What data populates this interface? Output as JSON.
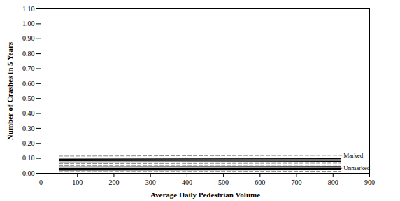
{
  "chart_data": {
    "type": "line",
    "xlabel": "Average Daily Pedestrian Volume",
    "ylabel": "Number of Crashes in 5 Years",
    "xlim": [
      0,
      900
    ],
    "ylim": [
      0.0,
      1.1
    ],
    "xticks": [
      0,
      100,
      200,
      300,
      400,
      500,
      600,
      700,
      800,
      900
    ],
    "yticks": [
      {
        "value": 0.0,
        "label": "0.00"
      },
      {
        "value": 0.1,
        "label": "0.10"
      },
      {
        "value": 0.2,
        "label": "0.20"
      },
      {
        "value": 0.3,
        "label": "0.30"
      },
      {
        "value": 0.4,
        "label": "0.40"
      },
      {
        "value": 0.5,
        "label": "0.50"
      },
      {
        "value": 0.6,
        "label": "0.60"
      },
      {
        "value": 0.7,
        "label": "0.70"
      },
      {
        "value": 0.8,
        "label": "0.80"
      },
      {
        "value": 0.9,
        "label": "0.90"
      },
      {
        "value": 1.0,
        "label": "1.00"
      },
      {
        "value": 1.1,
        "label": "1.10"
      }
    ],
    "grid": false,
    "x": [
      50,
      820
    ],
    "series": [
      {
        "values": [
          0.115,
          0.12
        ],
        "line_style": "dashed",
        "color": "#888888"
      },
      {
        "values": [
          0.095,
          0.097
        ],
        "line_style": "solid",
        "color": "black"
      },
      {
        "values": [
          0.085,
          0.088
        ],
        "line_style": "solid",
        "color": "black"
      },
      {
        "values": [
          0.075,
          0.078
        ],
        "line_style": "solid",
        "color": "black"
      },
      {
        "values": [
          0.065,
          0.068
        ],
        "line_style": "dashed",
        "color": "#888888"
      },
      {
        "values": [
          0.052,
          0.055
        ],
        "line_style": "dashed",
        "color": "#888888"
      },
      {
        "values": [
          0.042,
          0.044
        ],
        "line_style": "solid",
        "color": "black"
      },
      {
        "values": [
          0.032,
          0.034
        ],
        "line_style": "solid",
        "color": "black"
      },
      {
        "values": [
          0.022,
          0.024
        ],
        "line_style": "solid",
        "color": "black"
      },
      {
        "values": [
          0.012,
          0.014
        ],
        "line_style": "dashed",
        "color": "#888888"
      }
    ],
    "annotations": [
      {
        "text": "Marked",
        "x": 825,
        "y": 0.12,
        "target_x": 820,
        "target_y": 0.12
      },
      {
        "text": "Unmarked",
        "x": 825,
        "y": 0.034,
        "target_x": 820,
        "target_y": 0.034
      }
    ]
  }
}
